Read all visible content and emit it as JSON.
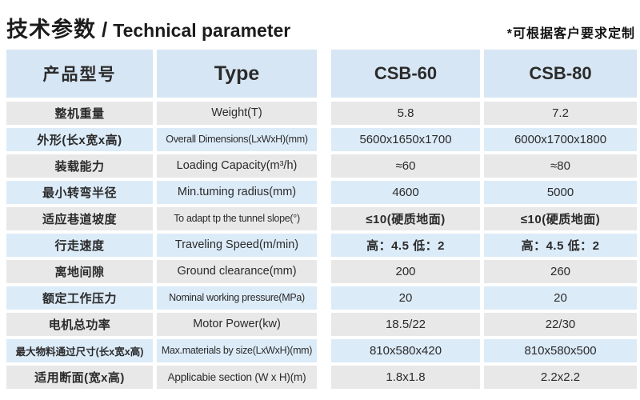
{
  "header": {
    "title_cn": "技术参数",
    "title_sep": "/",
    "title_en": "Technical parameter",
    "note": "*可根据客户要求定制"
  },
  "table": {
    "columns": {
      "name_cn": "产品型号",
      "name_en": "Type",
      "model1": "CSB-60",
      "model2": "CSB-80"
    },
    "rows": [
      {
        "cn": "整机重量",
        "en": "Weight(T)",
        "csb60": "5.8",
        "csb80": "7.2"
      },
      {
        "cn": "外形(长x宽x高)",
        "en": "Overall Dimensions(LxWxH)(mm)",
        "csb60": "5600x1650x1700",
        "csb80": "6000x1700x1800"
      },
      {
        "cn": "装载能力",
        "en": "Loading Capacity(m³/h)",
        "csb60": "≈60",
        "csb80": "≈80"
      },
      {
        "cn": "最小转弯半径",
        "en": "Min.tuming radius(mm)",
        "csb60": "4600",
        "csb80": "5000"
      },
      {
        "cn": "适应巷道坡度",
        "en": "To adapt tp the tunnel slope(°)",
        "csb60": "≤10(硬质地面)",
        "csb80": "≤10(硬质地面)"
      },
      {
        "cn": "行走速度",
        "en": "Traveling Speed(m/min)",
        "csb60": "高：4.5 低：2",
        "csb80": "高：4.5 低：2"
      },
      {
        "cn": "离地间隙",
        "en": "Ground clearance(mm)",
        "csb60": "200",
        "csb80": "260"
      },
      {
        "cn": "额定工作压力",
        "en": "Nominal working pressure(MPa)",
        "csb60": "20",
        "csb80": "20"
      },
      {
        "cn": "电机总功率",
        "en": "Motor Power(kw)",
        "csb60": "18.5/22",
        "csb80": "22/30"
      },
      {
        "cn": "最大物料通过尺寸(长x宽x高)",
        "en": "Max.materials by size(LxWxH)(mm)",
        "csb60": "810x580x420",
        "csb80": "810x580x500"
      },
      {
        "cn": "适用断面(宽x高)",
        "en": "Applicabie section (W x H)(m)",
        "csb60": "1.8x1.8",
        "csb80": "2.2x2.2"
      }
    ]
  },
  "colors": {
    "header_bg": "#d7e6f4",
    "row_odd_bg": "#e8e8e8",
    "row_even_bg": "#dcebf8",
    "text": "#2b2b2b"
  }
}
